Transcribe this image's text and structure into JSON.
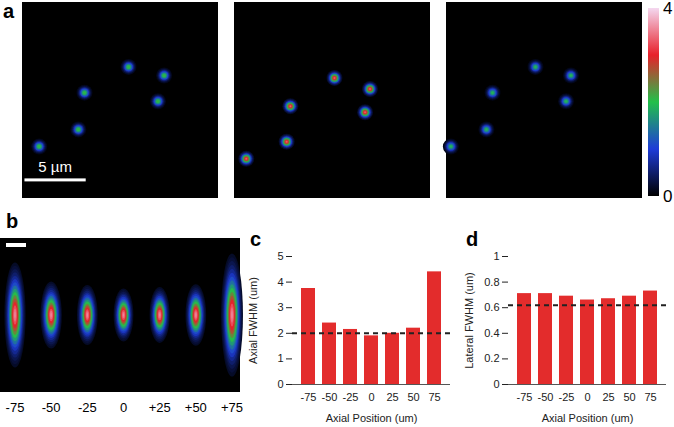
{
  "chart_data": [
    {
      "type": "image",
      "title": "a",
      "xlim": [
        0,
        16
      ],
      "ylim": [
        0,
        16
      ],
      "images": [
        {
          "x": [
            8.7,
            11.6,
            5.1,
            11.1,
            4.6,
            1.4
          ],
          "y": [
            5.3,
            6.0,
            7.4,
            8.1,
            10.4,
            11.8
          ],
          "peak": 2.2
        },
        {
          "x": [
            8.2,
            11.1,
            4.6,
            10.7,
            4.3,
            1.0
          ],
          "y": [
            6.2,
            7.1,
            8.5,
            9.0,
            11.4,
            12.8
          ],
          "peak": 3.4
        },
        {
          "x": [
            7.3,
            10.2,
            3.8,
            9.8,
            3.3,
            0.4
          ],
          "y": [
            5.3,
            6.0,
            7.4,
            8.1,
            10.4,
            11.8
          ],
          "peak": 2.0
        }
      ],
      "scale_bar": {
        "length": 5,
        "label": "5 µm"
      },
      "colorbar": {
        "range": [
          0,
          4
        ],
        "ticks": [
          0,
          4
        ]
      }
    },
    {
      "type": "image",
      "title": "b",
      "categories": [
        "-75",
        "-50",
        "-25",
        "0",
        "+25",
        "+50",
        "+75"
      ],
      "peak": [
        3.6,
        3.6,
        3.6,
        3.6,
        3.6,
        3.6,
        3.6
      ]
    },
    {
      "type": "bar",
      "title": "c",
      "categories": [
        "-75",
        "-50",
        "-25",
        "0",
        "25",
        "50",
        "75"
      ],
      "values": [
        3.75,
        2.4,
        2.15,
        1.9,
        2.0,
        2.2,
        4.4
      ],
      "reference_line": 2.0,
      "xlabel": "Axial Position (um)",
      "ylabel": "Axial FWHM (um)",
      "ylim": [
        0,
        5
      ],
      "yticks": [
        0,
        1,
        2,
        3,
        4,
        5
      ],
      "color": "#e32c2c",
      "grid": false
    },
    {
      "type": "bar",
      "title": "d",
      "categories": [
        "-75",
        "-50",
        "-25",
        "0",
        "25",
        "50",
        "75"
      ],
      "values": [
        0.71,
        0.71,
        0.69,
        0.66,
        0.67,
        0.69,
        0.73
      ],
      "reference_line": 0.62,
      "xlabel": "Axial Position (um)",
      "ylabel": "Lateral FWHM (um)",
      "ylim": [
        0,
        1
      ],
      "yticks": [
        0,
        0.2,
        0.4,
        0.6,
        0.8,
        1
      ],
      "color": "#e32c2c",
      "grid": false
    }
  ]
}
